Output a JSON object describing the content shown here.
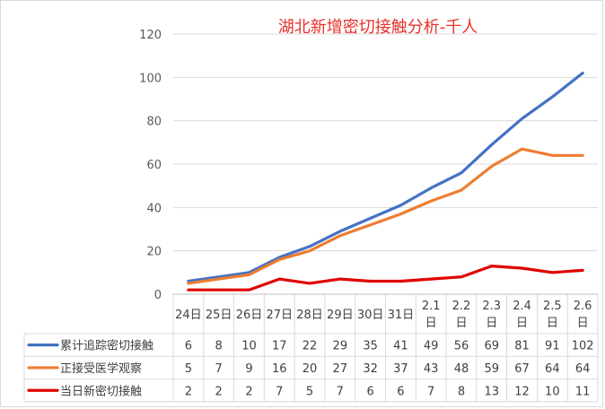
{
  "chart_data": {
    "type": "line",
    "title": "湖北新增密切接触分析-千人",
    "title_color": "#e8302a",
    "categories": [
      "24日",
      "25日",
      "26日",
      "27日",
      "28日",
      "29日",
      "30日",
      "31日",
      "2.1日",
      "2.2日",
      "2.3日",
      "2.4日",
      "2.5日",
      "2.6日"
    ],
    "y_ticks": [
      "0",
      "20",
      "40",
      "60",
      "80",
      "100",
      "120"
    ],
    "ylim": [
      0,
      120
    ],
    "grid": true,
    "legend": "data-table",
    "series": [
      {
        "name": "累计追踪密切接触",
        "color": "#4472c4",
        "values": [
          6,
          8,
          10,
          17,
          22,
          29,
          35,
          41,
          49,
          56,
          69,
          81,
          91,
          102
        ]
      },
      {
        "name": "正接受医学观察",
        "color": "#ed7d31",
        "values": [
          5,
          7,
          9,
          16,
          20,
          27,
          32,
          37,
          43,
          48,
          59,
          67,
          64,
          64
        ]
      },
      {
        "name": "当日新密切接触",
        "color": "#e00000",
        "values": [
          2,
          2,
          2,
          7,
          5,
          7,
          6,
          6,
          7,
          8,
          13,
          12,
          10,
          11
        ]
      }
    ]
  }
}
